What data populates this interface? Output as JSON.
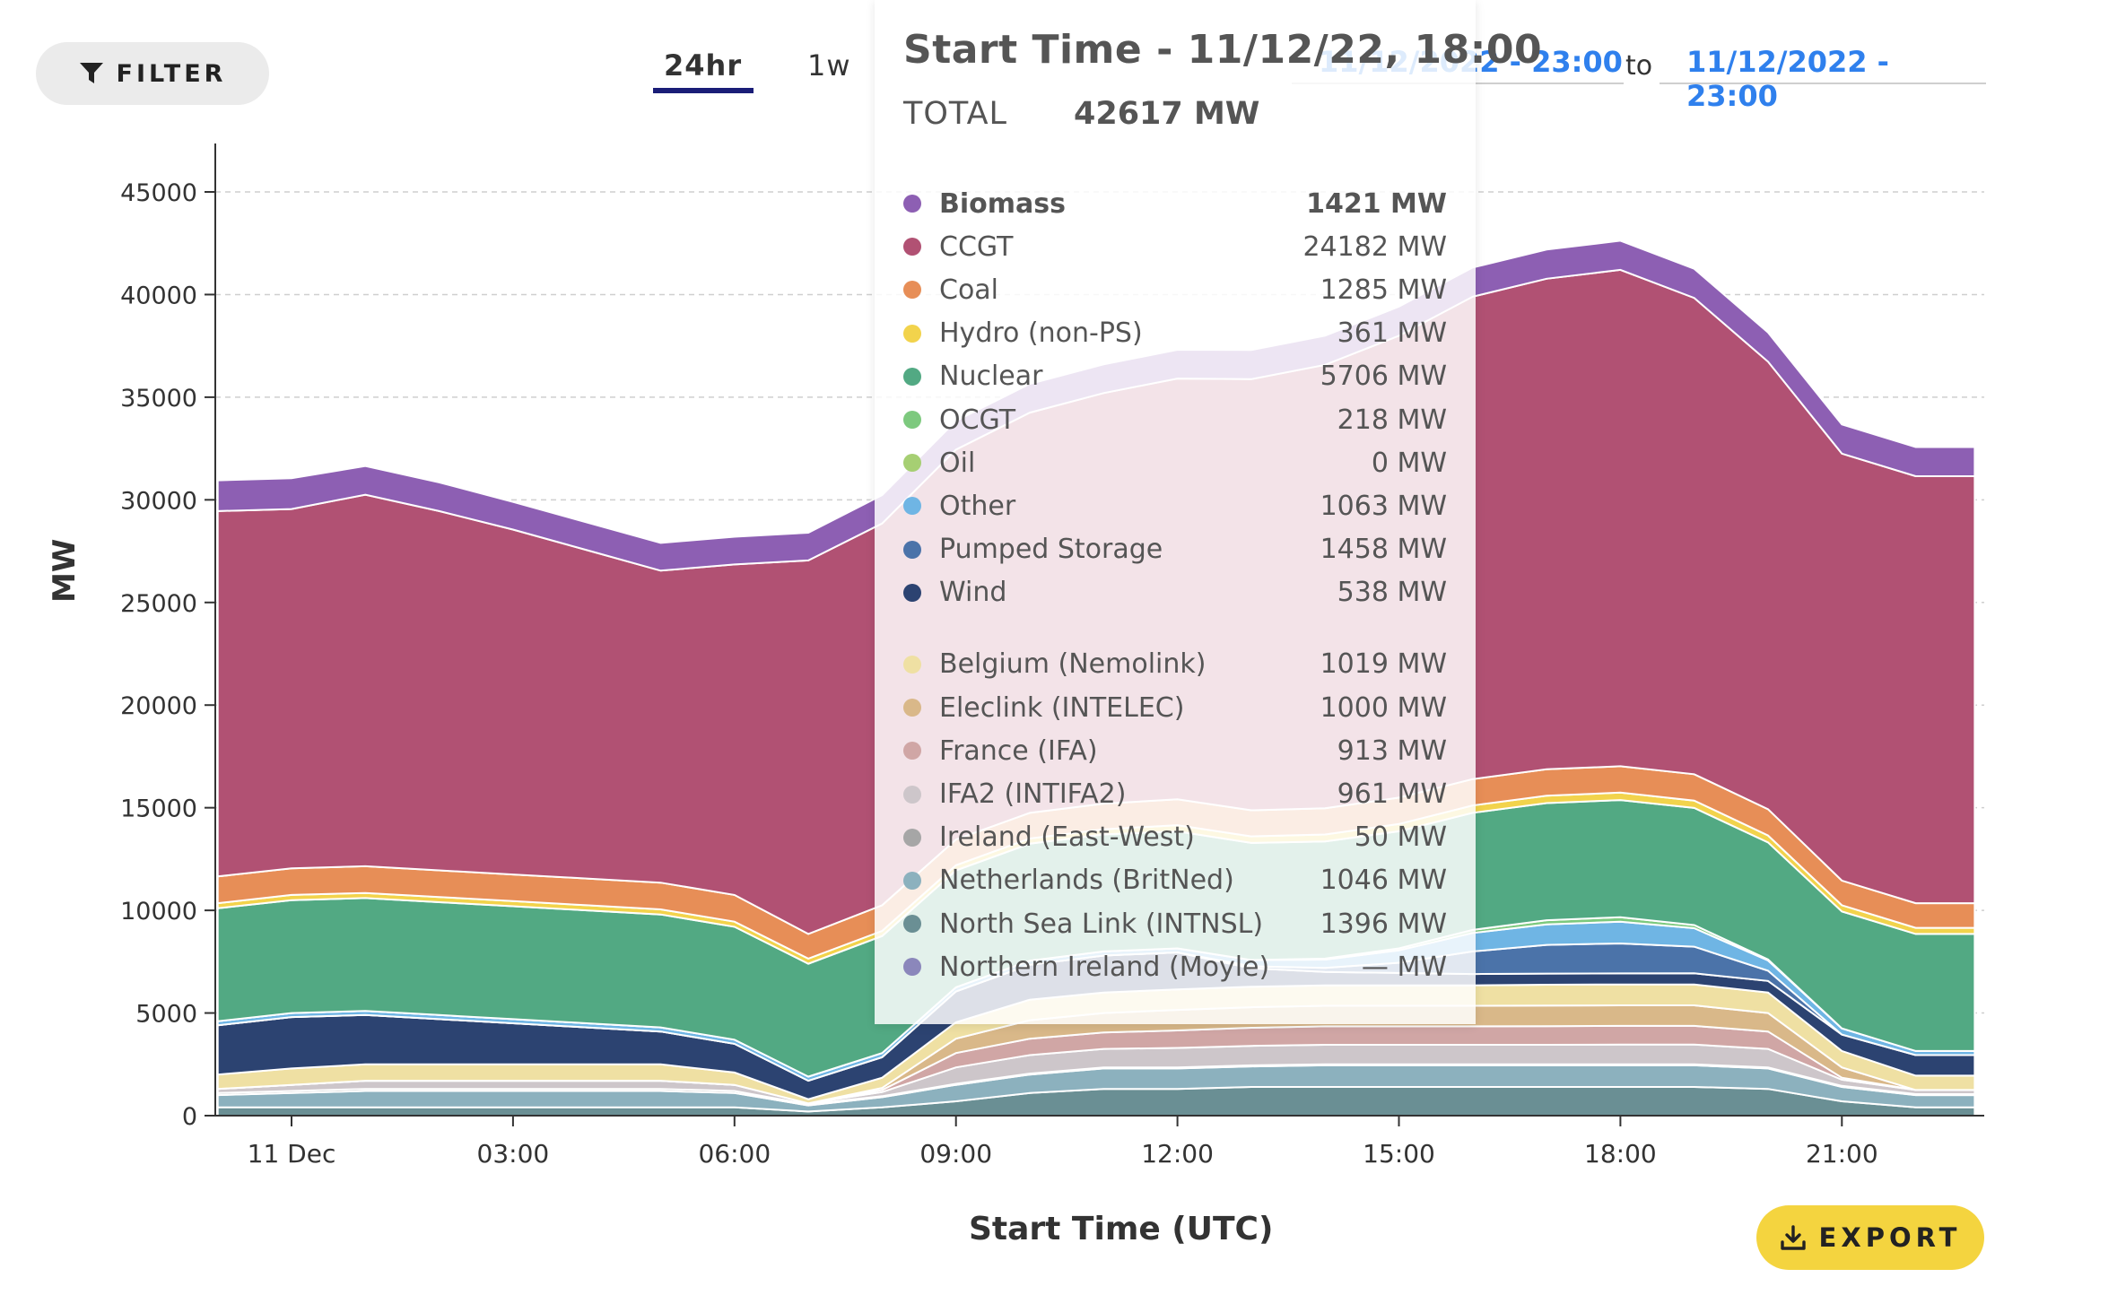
{
  "controls": {
    "filter_label": "FILTER",
    "range_tabs": [
      "24hr",
      "1w"
    ],
    "active_tab": "24hr",
    "date_from": "11/12/2022 - 23:00",
    "date_separator": "to",
    "date_to": "11/12/2022 - 23:00",
    "export_label": "EXPORT"
  },
  "tooltip": {
    "title": "Start Time - 11/12/22, 18:00",
    "total_label": "TOTAL",
    "total_value": "42617 MW",
    "generation": [
      {
        "name": "Biomass",
        "value": "1421 MW",
        "color": "#8d5fb3",
        "bold": true
      },
      {
        "name": "CCGT",
        "value": "24182 MW",
        "color": "#b15173"
      },
      {
        "name": "Coal",
        "value": "1285 MW",
        "color": "#e78e57"
      },
      {
        "name": "Hydro (non-PS)",
        "value": "361 MW",
        "color": "#f2d34c"
      },
      {
        "name": "Nuclear",
        "value": "5706 MW",
        "color": "#52a983"
      },
      {
        "name": "OCGT",
        "value": "218 MW",
        "color": "#7dc97e"
      },
      {
        "name": "Oil",
        "value": "0 MW",
        "color": "#a6cf73"
      },
      {
        "name": "Other",
        "value": "1063 MW",
        "color": "#6fb5e4"
      },
      {
        "name": "Pumped Storage",
        "value": "1458 MW",
        "color": "#4b73a9"
      },
      {
        "name": "Wind",
        "value": "538 MW",
        "color": "#2c4371"
      }
    ],
    "interconnectors": [
      {
        "name": "Belgium (Nemolink)",
        "value": "1019 MW",
        "color": "#efe0a3"
      },
      {
        "name": "Eleclink (INTELEC)",
        "value": "1000 MW",
        "color": "#d9b889"
      },
      {
        "name": "France (IFA)",
        "value": "913 MW",
        "color": "#d0a6a5"
      },
      {
        "name": "IFA2 (INTIFA2)",
        "value": "961 MW",
        "color": "#cdc6ca"
      },
      {
        "name": "Ireland (East-West)",
        "value": "50 MW",
        "color": "#a6a6a6"
      },
      {
        "name": "Netherlands (BritNed)",
        "value": "1046 MW",
        "color": "#8cb1be"
      },
      {
        "name": "North Sea Link (INTNSL)",
        "value": "1396 MW",
        "color": "#6a8f94"
      },
      {
        "name": "Northern Ireland (Moyle)",
        "value": "— MW",
        "color": "#8b87bb"
      }
    ]
  },
  "chart_data": {
    "type": "area",
    "stacked": true,
    "xlabel": "Start Time (UTC)",
    "ylabel": "MW",
    "ylim": [
      0,
      47500
    ],
    "yticks": [
      0,
      5000,
      10000,
      15000,
      20000,
      25000,
      30000,
      35000,
      40000,
      45000
    ],
    "xticks": [
      {
        "h": 0,
        "label": "11 Dec"
      },
      {
        "h": 3,
        "label": "03:00"
      },
      {
        "h": 6,
        "label": "06:00"
      },
      {
        "h": 9,
        "label": "09:00"
      },
      {
        "h": 12,
        "label": "12:00"
      },
      {
        "h": 15,
        "label": "15:00"
      },
      {
        "h": 18,
        "label": "18:00"
      },
      {
        "h": 21,
        "label": "21:00"
      }
    ],
    "grid": "horizontal dashed",
    "x_hours": [
      -1,
      0,
      1,
      2,
      3,
      4,
      5,
      6,
      7,
      8,
      9,
      10,
      11,
      12,
      13,
      14,
      15,
      16,
      17,
      18,
      19,
      20,
      21,
      22,
      22.8
    ],
    "series": [
      {
        "name": "North Sea Link (INTNSL)",
        "color": "#6a8f94",
        "values": [
          400,
          400,
          400,
          400,
          400,
          400,
          400,
          400,
          200,
          400,
          700,
          1100,
          1300,
          1300,
          1400,
          1400,
          1400,
          1400,
          1400,
          1400,
          1400,
          1300,
          700,
          400,
          400
        ]
      },
      {
        "name": "Netherlands (BritNed)",
        "color": "#8cb1be",
        "values": [
          600,
          700,
          800,
          800,
          800,
          800,
          800,
          700,
          300,
          500,
          800,
          900,
          1000,
          1000,
          1000,
          1050,
          1050,
          1050,
          1050,
          1050,
          1050,
          1000,
          700,
          600,
          600
        ]
      },
      {
        "name": "Ireland (East-West)",
        "color": "#a6a6a6",
        "values": [
          100,
          100,
          100,
          100,
          100,
          100,
          100,
          100,
          50,
          50,
          50,
          50,
          50,
          50,
          50,
          50,
          50,
          50,
          50,
          50,
          50,
          50,
          50,
          50,
          50
        ]
      },
      {
        "name": "IFA2 (INTIFA2)",
        "color": "#cdc6ca",
        "values": [
          200,
          300,
          400,
          400,
          400,
          400,
          400,
          300,
          50,
          200,
          800,
          900,
          900,
          950,
          950,
          950,
          950,
          950,
          950,
          960,
          960,
          900,
          300,
          200,
          200
        ]
      },
      {
        "name": "France (IFA)",
        "color": "#d0a6a5",
        "values": [
          0,
          0,
          0,
          0,
          0,
          0,
          0,
          0,
          0,
          100,
          700,
          800,
          800,
          850,
          880,
          900,
          900,
          900,
          910,
          913,
          913,
          850,
          100,
          0,
          0
        ]
      },
      {
        "name": "Eleclink (INTELEC)",
        "color": "#d9b889",
        "values": [
          0,
          0,
          0,
          0,
          0,
          0,
          0,
          0,
          0,
          100,
          700,
          900,
          950,
          1000,
          1000,
          1000,
          1000,
          1000,
          1000,
          1000,
          1000,
          900,
          500,
          0,
          0
        ]
      },
      {
        "name": "Belgium (Nemolink)",
        "color": "#efe0a3",
        "values": [
          700,
          800,
          800,
          800,
          800,
          800,
          800,
          600,
          200,
          500,
          800,
          1000,
          1000,
          1000,
          1000,
          1000,
          1000,
          1000,
          1019,
          1019,
          1019,
          1000,
          800,
          700,
          700
        ]
      },
      {
        "name": "Wind",
        "color": "#2c4371",
        "values": [
          2400,
          2500,
          2400,
          2200,
          2000,
          1800,
          1600,
          1400,
          900,
          1000,
          1500,
          1700,
          1800,
          1800,
          900,
          650,
          600,
          550,
          540,
          538,
          540,
          560,
          800,
          1000,
          1000
        ]
      },
      {
        "name": "Pumped Storage",
        "color": "#4b73a9",
        "values": [
          0,
          0,
          0,
          0,
          0,
          0,
          0,
          0,
          0,
          0,
          0,
          0,
          0,
          0,
          100,
          200,
          500,
          1100,
          1400,
          1458,
          1300,
          500,
          0,
          0,
          0
        ]
      },
      {
        "name": "Other",
        "color": "#6fb5e4",
        "values": [
          200,
          200,
          200,
          200,
          200,
          200,
          200,
          200,
          200,
          200,
          200,
          200,
          200,
          200,
          300,
          400,
          600,
          900,
          1000,
          1063,
          900,
          500,
          300,
          200,
          200
        ]
      },
      {
        "name": "OCGT",
        "color": "#7dc97e",
        "values": [
          0,
          0,
          0,
          0,
          0,
          0,
          0,
          0,
          0,
          0,
          0,
          0,
          0,
          0,
          0,
          50,
          100,
          150,
          200,
          218,
          150,
          50,
          0,
          0,
          0
        ]
      },
      {
        "name": "Nuclear",
        "color": "#52a983",
        "values": [
          5500,
          5500,
          5500,
          5500,
          5500,
          5500,
          5500,
          5500,
          5500,
          5700,
          5700,
          5700,
          5700,
          5700,
          5706,
          5706,
          5706,
          5706,
          5706,
          5706,
          5706,
          5700,
          5700,
          5700,
          5700
        ]
      },
      {
        "name": "Hydro (non-PS)",
        "color": "#f2d34c",
        "values": [
          250,
          250,
          250,
          250,
          250,
          250,
          250,
          250,
          250,
          250,
          250,
          250,
          250,
          300,
          320,
          340,
          350,
          355,
          361,
          361,
          361,
          340,
          300,
          300,
          300
        ]
      },
      {
        "name": "Coal",
        "color": "#e78e57",
        "values": [
          1300,
          1300,
          1300,
          1300,
          1300,
          1300,
          1300,
          1300,
          1200,
          1250,
          1250,
          1250,
          1250,
          1260,
          1270,
          1280,
          1285,
          1285,
          1285,
          1285,
          1285,
          1280,
          1200,
          1200,
          1200
        ]
      },
      {
        "name": "CCGT",
        "color": "#b15173",
        "values": [
          17800,
          17500,
          18100,
          17500,
          16800,
          16000,
          15200,
          16100,
          18200,
          18600,
          19000,
          19500,
          20000,
          20500,
          21000,
          21600,
          22500,
          23500,
          23900,
          24182,
          23200,
          21800,
          20800,
          20800,
          20800
        ]
      },
      {
        "name": "Biomass",
        "color": "#8d5fb3",
        "values": [
          1500,
          1500,
          1400,
          1400,
          1350,
          1350,
          1350,
          1350,
          1350,
          1380,
          1400,
          1400,
          1400,
          1400,
          1420,
          1420,
          1420,
          1420,
          1421,
          1421,
          1421,
          1420,
          1420,
          1420,
          1420
        ]
      }
    ]
  }
}
